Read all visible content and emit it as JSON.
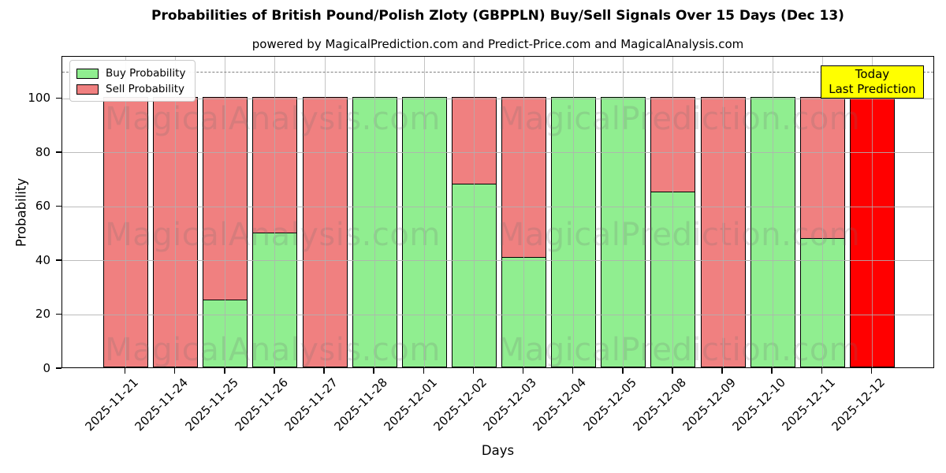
{
  "title": "Probabilities of British Pound/Polish Zloty (GBPPLN) Buy/Sell Signals Over 15 Days (Dec 13)",
  "subtitle": "powered by MagicalPrediction.com and Predict-Price.com and MagicalAnalysis.com",
  "legend": {
    "buy_label": "Buy Probability",
    "sell_label": "Sell Probability"
  },
  "annotation_box": {
    "line1": "Today",
    "line2": "Last Prediction",
    "bg_color": "#FFFF00"
  },
  "axes": {
    "ylabel": "Probability",
    "xlabel": "Days",
    "yticks": [
      0,
      20,
      40,
      60,
      80,
      100
    ]
  },
  "watermarks": {
    "left_text": "MagicalAnalysis.com",
    "right_text": "MagicalPrediction.com"
  },
  "colors": {
    "buy": "#90EE90",
    "sell": "#F08080",
    "today_bar": "#FF0000",
    "grid": "#b0b0b0",
    "dashed_guide": "#808080",
    "annotation_bg": "#FFFF00"
  },
  "chart_data": {
    "type": "bar",
    "stacked": true,
    "title": "Probabilities of British Pound/Polish Zloty (GBPPLN) Buy/Sell Signals Over 15 Days (Dec 13)",
    "xlabel": "Days",
    "ylabel": "Probability",
    "ylim": [
      0,
      115.6
    ],
    "grid": true,
    "legend_position": "upper-left",
    "dashed_guide_y": 110,
    "categories": [
      "2025-11-21",
      "2025-11-24",
      "2025-11-25",
      "2025-11-26",
      "2025-11-27",
      "2025-11-28",
      "2025-12-01",
      "2025-12-02",
      "2025-12-03",
      "2025-12-04",
      "2025-12-05",
      "2025-12-08",
      "2025-12-09",
      "2025-12-10",
      "2025-12-11",
      "2025-12-12"
    ],
    "series": [
      {
        "name": "Buy Probability",
        "color": "#90EE90",
        "values": [
          0,
          0,
          25,
          50,
          0,
          100,
          100,
          68,
          41,
          100,
          100,
          65,
          0,
          100,
          48,
          0
        ]
      },
      {
        "name": "Sell Probability",
        "color": "#F08080",
        "values": [
          100,
          100,
          75,
          50,
          100,
          0,
          0,
          32,
          59,
          0,
          0,
          35,
          100,
          0,
          52,
          100
        ]
      }
    ],
    "today_bar": {
      "index": 15,
      "color": "#FF0000",
      "annotation": "Today Last Prediction"
    }
  }
}
